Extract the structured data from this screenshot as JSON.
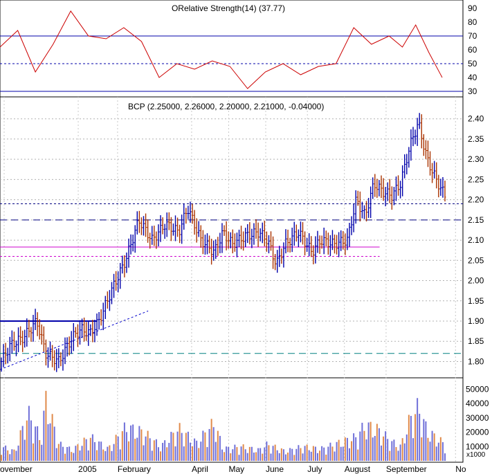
{
  "chart_data": [
    {
      "type": "line",
      "panel": "rsi",
      "title": "ORelative Strength(14) (37.77)",
      "ylim": [
        28,
        92
      ],
      "yticks": [
        30,
        40,
        50,
        60,
        70,
        80,
        90
      ],
      "reference_lines": [
        70,
        50,
        30
      ],
      "series": [
        {
          "color": "#cc0000",
          "x": [
            0,
            0.04,
            0.08,
            0.12,
            0.16,
            0.2,
            0.24,
            0.28,
            0.32,
            0.36,
            0.4,
            0.44,
            0.48,
            0.52,
            0.56,
            0.6,
            0.64,
            0.68,
            0.72,
            0.76,
            0.8,
            0.84,
            0.88,
            0.91,
            0.94,
            0.97,
            1.0
          ],
          "values": [
            62,
            74,
            44,
            64,
            88,
            70,
            68,
            76,
            66,
            40,
            50,
            46,
            52,
            48,
            32,
            44,
            50,
            42,
            48,
            50,
            76,
            64,
            70,
            62,
            78,
            58,
            40
          ]
        }
      ]
    },
    {
      "type": "ohlc",
      "panel": "price",
      "title": "BCP (2.25000, 2.26000, 2.20000, 2.21000, -0.04000)",
      "ylim": [
        1.77,
        2.42
      ],
      "yticks": [
        1.8,
        1.85,
        1.9,
        1.95,
        2.0,
        2.05,
        2.1,
        2.15,
        2.2,
        2.25,
        2.3,
        2.35,
        2.4
      ],
      "xticks": [
        "ovember",
        "2005",
        "February",
        "April",
        "May",
        "June",
        "July",
        "August",
        "September",
        "No"
      ],
      "series": [
        {
          "name": "close",
          "x": [
            0,
            0.02,
            0.05,
            0.08,
            0.1,
            0.13,
            0.16,
            0.18,
            0.2,
            0.22,
            0.25,
            0.28,
            0.31,
            0.34,
            0.37,
            0.4,
            0.42,
            0.45,
            0.48,
            0.5,
            0.52,
            0.55,
            0.58,
            0.6,
            0.62,
            0.64,
            0.67,
            0.7,
            0.72,
            0.75,
            0.78,
            0.8,
            0.82,
            0.84,
            0.86,
            0.88,
            0.9,
            0.92,
            0.94,
            0.96,
            0.98,
            1.0
          ],
          "values": [
            1.8,
            1.84,
            1.86,
            1.9,
            1.82,
            1.8,
            1.86,
            1.88,
            1.87,
            1.9,
            1.98,
            2.05,
            2.15,
            2.1,
            2.14,
            2.12,
            2.18,
            2.1,
            2.07,
            2.12,
            2.09,
            2.11,
            2.12,
            2.1,
            2.04,
            2.09,
            2.12,
            2.07,
            2.1,
            2.09,
            2.1,
            2.2,
            2.16,
            2.24,
            2.22,
            2.21,
            2.24,
            2.33,
            2.39,
            2.3,
            2.25,
            2.21
          ]
        }
      ],
      "horizontal_lines": [
        {
          "value": 1.9,
          "style": "solid",
          "color": "#0000aa",
          "span": [
            0,
            0.21
          ]
        },
        {
          "value": 2.083,
          "style": "solid",
          "color": "#cc00cc",
          "span": [
            0,
            0.82
          ]
        },
        {
          "value": 2.06,
          "style": "dotted",
          "color": "#cc00cc",
          "span": [
            0,
            0.82
          ]
        },
        {
          "value": 2.15,
          "style": "dashed",
          "color": "#000080",
          "span": [
            0,
            1
          ]
        },
        {
          "value": 2.19,
          "style": "dotted",
          "color": "#000080",
          "span": [
            0,
            1
          ]
        },
        {
          "value": 1.82,
          "style": "dashed",
          "color": "#008080",
          "span": [
            0,
            1
          ]
        }
      ],
      "trendline": {
        "from": [
          0,
          1.78
        ],
        "to": [
          0.32,
          1.925
        ]
      },
      "grid": true
    },
    {
      "type": "bar",
      "panel": "volume",
      "ylim": [
        0,
        55000
      ],
      "yticks": [
        10000,
        20000,
        30000,
        40000,
        50000
      ],
      "unit_label": "x1000",
      "series": [
        {
          "x": [
            0,
            0.03,
            0.06,
            0.09,
            0.1,
            0.13,
            0.16,
            0.2,
            0.24,
            0.28,
            0.32,
            0.36,
            0.4,
            0.44,
            0.48,
            0.5,
            0.54,
            0.58,
            0.6,
            0.64,
            0.68,
            0.72,
            0.76,
            0.8,
            0.82,
            0.85,
            0.88,
            0.9,
            0.92,
            0.94,
            0.96,
            1.0
          ],
          "values": [
            12000,
            8000,
            40000,
            18000,
            52000,
            14000,
            9000,
            20000,
            10000,
            28000,
            24000,
            12000,
            27000,
            15000,
            32000,
            10000,
            12000,
            9000,
            14000,
            8000,
            12000,
            10000,
            15000,
            20000,
            30000,
            26000,
            16000,
            12000,
            34000,
            45000,
            25000,
            14000
          ]
        }
      ]
    }
  ]
}
